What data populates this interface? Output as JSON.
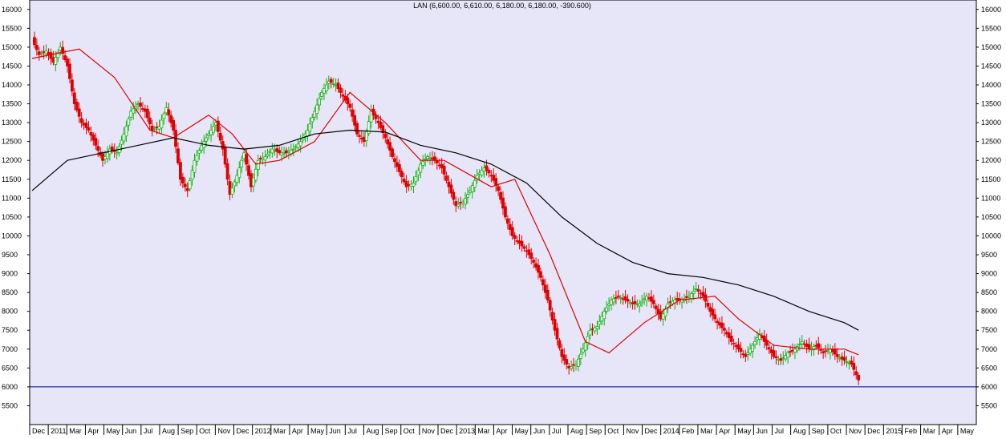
{
  "chart_data": {
    "type": "candlestick",
    "title": "LAN (6,600.00, 6,610.00, 6,180.00, 6,180.00, -390.600)",
    "y_ticks": [
      5500,
      6000,
      6500,
      7000,
      7500,
      8000,
      8500,
      9000,
      9500,
      10000,
      10500,
      11000,
      11500,
      12000,
      12500,
      13000,
      13500,
      14000,
      14500,
      15000,
      15500,
      16000
    ],
    "ylim": [
      5000,
      16250
    ],
    "x_tick_labels": [
      "Dec",
      "2011",
      "Mar",
      "Apr",
      "May",
      "Jun",
      "Jul",
      "Aug",
      "Sep",
      "Oct",
      "Nov",
      "Dec",
      "2012",
      "Mar",
      "Apr",
      "May",
      "Jun",
      "Jul",
      "Aug",
      "Sep",
      "Oct",
      "Nov",
      "Dec",
      "2013",
      "Mar",
      "Apr",
      "May",
      "Jun",
      "Jul",
      "Aug",
      "Sep",
      "Oct",
      "Nov",
      "Dec",
      "2014",
      "Feb",
      "Mar",
      "Apr",
      "May",
      "Jun",
      "Jul",
      "Aug",
      "Sep",
      "Oct",
      "Nov",
      "Dec",
      "2015",
      "Feb",
      "Mar",
      "Apr",
      "May"
    ],
    "horizontal_line": 6000,
    "close_path": [
      [
        0,
        15200
      ],
      [
        3,
        14800
      ],
      [
        6,
        14900
      ],
      [
        9,
        14600
      ],
      [
        12,
        15000
      ],
      [
        15,
        14500
      ],
      [
        18,
        13500
      ],
      [
        21,
        13000
      ],
      [
        24,
        12800
      ],
      [
        27,
        12400
      ],
      [
        30,
        12000
      ],
      [
        33,
        12300
      ],
      [
        36,
        12200
      ],
      [
        39,
        12700
      ],
      [
        42,
        13300
      ],
      [
        45,
        13500
      ],
      [
        48,
        13300
      ],
      [
        51,
        12800
      ],
      [
        54,
        12900
      ],
      [
        57,
        13400
      ],
      [
        60,
        12800
      ],
      [
        63,
        11500
      ],
      [
        66,
        11200
      ],
      [
        69,
        12000
      ],
      [
        72,
        12400
      ],
      [
        75,
        12700
      ],
      [
        78,
        13000
      ],
      [
        81,
        12300
      ],
      [
        84,
        11100
      ],
      [
        87,
        11600
      ],
      [
        90,
        12200
      ],
      [
        93,
        11300
      ],
      [
        96,
        12000
      ],
      [
        99,
        12100
      ],
      [
        102,
        12300
      ],
      [
        105,
        12200
      ],
      [
        108,
        12200
      ],
      [
        111,
        12300
      ],
      [
        114,
        12500
      ],
      [
        117,
        12800
      ],
      [
        120,
        13300
      ],
      [
        123,
        13800
      ],
      [
        126,
        14100
      ],
      [
        129,
        14000
      ],
      [
        132,
        13700
      ],
      [
        135,
        13400
      ],
      [
        138,
        12700
      ],
      [
        141,
        12500
      ],
      [
        144,
        13300
      ],
      [
        147,
        13000
      ],
      [
        150,
        12600
      ],
      [
        153,
        12100
      ],
      [
        156,
        11700
      ],
      [
        159,
        11300
      ],
      [
        162,
        11400
      ],
      [
        165,
        11900
      ],
      [
        168,
        12100
      ],
      [
        171,
        12000
      ],
      [
        174,
        11800
      ],
      [
        177,
        11300
      ],
      [
        180,
        10800
      ],
      [
        183,
        10900
      ],
      [
        186,
        11200
      ],
      [
        189,
        11600
      ],
      [
        192,
        11800
      ],
      [
        195,
        11600
      ],
      [
        198,
        11200
      ],
      [
        201,
        10500
      ],
      [
        204,
        10000
      ],
      [
        207,
        9800
      ],
      [
        210,
        9600
      ],
      [
        213,
        9300
      ],
      [
        216,
        8900
      ],
      [
        219,
        8300
      ],
      [
        222,
        7500
      ],
      [
        225,
        6800
      ],
      [
        228,
        6500
      ],
      [
        231,
        6600
      ],
      [
        234,
        7000
      ],
      [
        237,
        7500
      ],
      [
        240,
        7600
      ],
      [
        243,
        8000
      ],
      [
        246,
        8300
      ],
      [
        249,
        8400
      ],
      [
        252,
        8300
      ],
      [
        255,
        8200
      ],
      [
        258,
        8200
      ],
      [
        261,
        8400
      ],
      [
        264,
        8200
      ],
      [
        267,
        7800
      ],
      [
        270,
        8200
      ],
      [
        273,
        8300
      ],
      [
        276,
        8300
      ],
      [
        279,
        8400
      ],
      [
        282,
        8600
      ],
      [
        285,
        8400
      ],
      [
        288,
        8000
      ],
      [
        291,
        7700
      ],
      [
        294,
        7500
      ],
      [
        297,
        7200
      ],
      [
        300,
        7000
      ],
      [
        303,
        6800
      ],
      [
        306,
        7100
      ],
      [
        309,
        7400
      ],
      [
        312,
        7100
      ],
      [
        315,
        6800
      ],
      [
        318,
        6700
      ],
      [
        321,
        6900
      ],
      [
        324,
        7000
      ],
      [
        327,
        7200
      ],
      [
        330,
        7000
      ],
      [
        333,
        7100
      ],
      [
        336,
        6900
      ],
      [
        339,
        7000
      ],
      [
        342,
        6800
      ],
      [
        345,
        6700
      ],
      [
        348,
        6600
      ],
      [
        351,
        6180
      ]
    ],
    "series": [
      {
        "name": "",
        "color": "#e00000",
        "values": [
          [
            0,
            14700
          ],
          [
            20,
            14950
          ],
          [
            35,
            14200
          ],
          [
            50,
            12800
          ],
          [
            60,
            12600
          ],
          [
            75,
            13200
          ],
          [
            85,
            12700
          ],
          [
            95,
            11900
          ],
          [
            105,
            12000
          ],
          [
            120,
            12500
          ],
          [
            135,
            13800
          ],
          [
            150,
            13000
          ],
          [
            165,
            12000
          ],
          [
            175,
            12000
          ],
          [
            195,
            11300
          ],
          [
            205,
            11500
          ],
          [
            220,
            9500
          ],
          [
            235,
            7200
          ],
          [
            245,
            6900
          ],
          [
            260,
            7700
          ],
          [
            275,
            8300
          ],
          [
            290,
            8400
          ],
          [
            300,
            7800
          ],
          [
            315,
            7100
          ],
          [
            330,
            7000
          ],
          [
            345,
            7000
          ],
          [
            351,
            6850
          ]
        ]
      },
      {
        "name": "",
        "color": "#000000",
        "values": [
          [
            0,
            11200
          ],
          [
            15,
            12000
          ],
          [
            30,
            12200
          ],
          [
            45,
            12400
          ],
          [
            60,
            12600
          ],
          [
            75,
            12400
          ],
          [
            90,
            12300
          ],
          [
            105,
            12400
          ],
          [
            120,
            12700
          ],
          [
            135,
            12800
          ],
          [
            150,
            12750
          ],
          [
            165,
            12400
          ],
          [
            180,
            12200
          ],
          [
            195,
            11900
          ],
          [
            210,
            11400
          ],
          [
            225,
            10500
          ],
          [
            240,
            9800
          ],
          [
            255,
            9300
          ],
          [
            270,
            9000
          ],
          [
            285,
            8900
          ],
          [
            300,
            8700
          ],
          [
            315,
            8400
          ],
          [
            330,
            8000
          ],
          [
            345,
            7700
          ],
          [
            351,
            7500
          ]
        ]
      }
    ],
    "colors": {
      "up": "#10b010",
      "down": "#e00000",
      "background": "#e6e6f8",
      "baseline": "#00008b"
    },
    "grid": false,
    "legend": "none"
  }
}
